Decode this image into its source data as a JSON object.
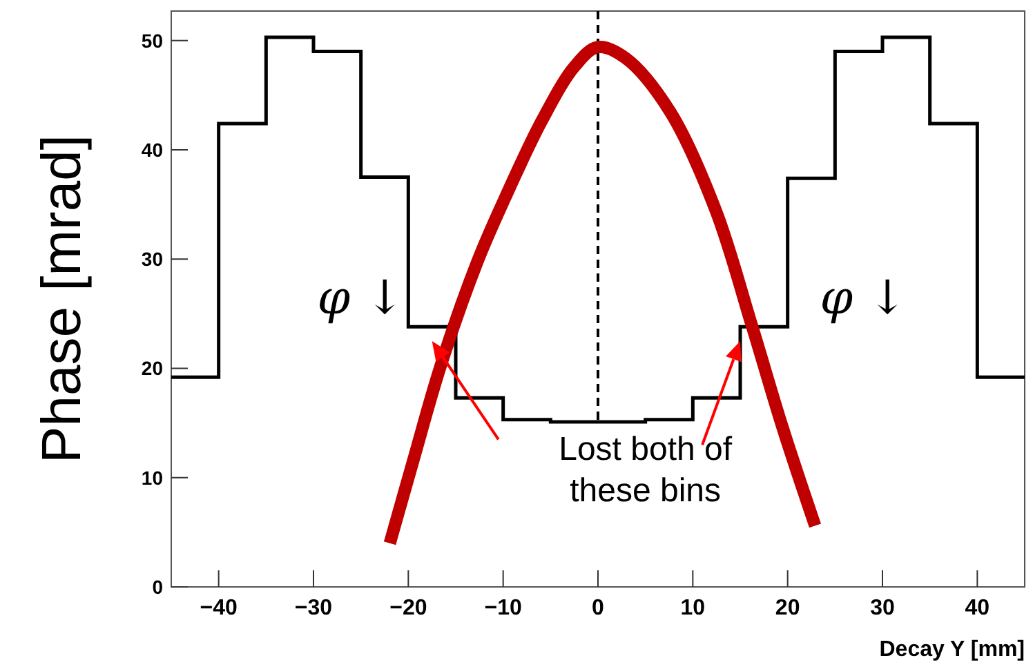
{
  "chart_data": {
    "type": "histogram",
    "xlabel": "Decay Y [mm]",
    "ylabel": "Phase [mrad]",
    "bins": [
      -45,
      -40,
      -35,
      -30,
      -25,
      -20,
      -15,
      -10,
      -5,
      0,
      5,
      10,
      15,
      20,
      25,
      30,
      35,
      40,
      45
    ],
    "values": [
      19.2,
      42.4,
      50.3,
      49.0,
      37.5,
      23.8,
      17.3,
      15.3,
      15.1,
      15.1,
      15.3,
      17.3,
      23.8,
      37.4,
      49.0,
      50.3,
      42.4,
      19.2
    ],
    "color": "#000000",
    "series": [
      {
        "type": "line",
        "color": "#c00000",
        "x": [
          -21.95,
          -19.5,
          -16.6,
          -12.7,
          -9.8,
          -5.9,
          -2.4,
          0,
          2.9,
          7.6,
          12.4,
          16.2,
          19.5,
          22.9
        ],
        "values": [
          4.0,
          11.5,
          20.2,
          29.8,
          35.6,
          42.7,
          47.7,
          49.4,
          48.4,
          43.5,
          34.5,
          24.0,
          14.5,
          5.6
        ]
      }
    ],
    "xlim": [
      -45,
      45
    ],
    "ylim": [
      0,
      52.7
    ],
    "xticks": [
      -40,
      -30,
      -20,
      -10,
      0,
      10,
      20,
      30,
      40
    ],
    "yticks": [
      0,
      10,
      20,
      30,
      40,
      50
    ],
    "ref_lines": [
      {
        "axis": "x",
        "value": 0,
        "line_style": "dashed",
        "color": "#000000"
      }
    ],
    "annotations": [
      "φ ↓",
      "φ ↓",
      {
        "text": "Lost both of these bins",
        "x": 15,
        "y": 22.5
      }
    ]
  }
}
